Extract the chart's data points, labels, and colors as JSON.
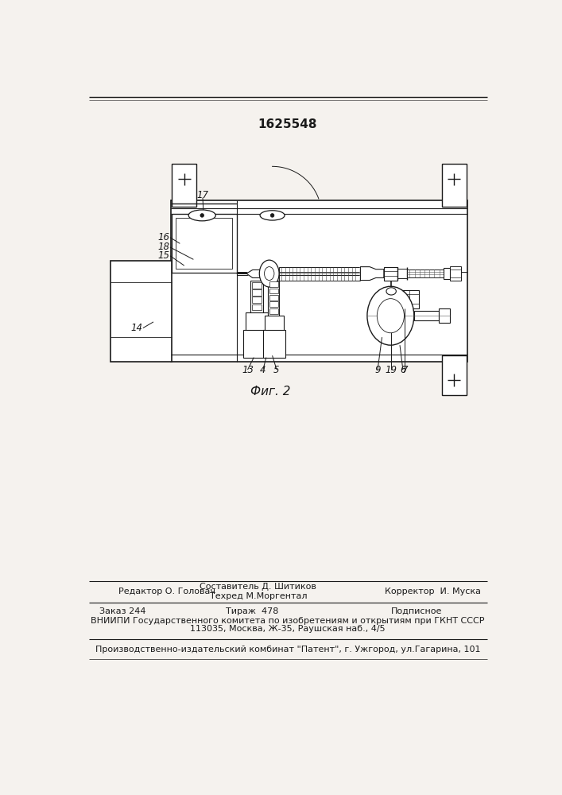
{
  "patent_number": "1625548",
  "fig_label": "Фиг. 2",
  "editor_line": "Редактор О. Головач",
  "composer_line1": "Составитель Д. Шитиков",
  "composer_line2": "Техред М.Моргентал",
  "corrector_line": "Корректор  И. Муска",
  "order_line": "Заказ 244",
  "circulation_line": "Тираж  478",
  "subscription_line": "Подписное",
  "vniipи_line1": "ВНИИПИ Государственного комитета по изобретениям и открытиям при ГКНТ СССР",
  "vniipи_line2": "113035, Москва, Ж-35, Раушская наб., 4/5",
  "publisher_line": "Производственно-издательский комбинат \"Патент\", г. Ужгород, ул.Гагарина, 101",
  "bg_color": "#f5f2ee",
  "line_color": "#1a1a1a",
  "text_color": "#1a1a1a"
}
